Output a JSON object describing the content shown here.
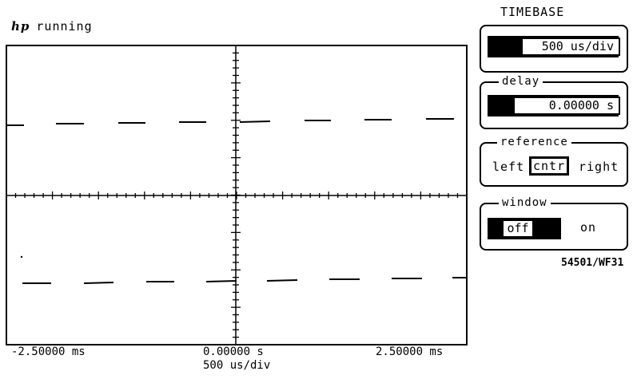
{
  "status": {
    "brand": "hp",
    "state": "running"
  },
  "graticule": {
    "x_axis": {
      "left": "-2.50000 ms",
      "center": "0.00000  s",
      "right": "2.50000 ms",
      "scale": "500 us/div"
    }
  },
  "panel": {
    "title": "TIMEBASE",
    "timebase_value": "500 us/div",
    "delay": {
      "label": "delay",
      "value": "0.00000  s"
    },
    "reference": {
      "label": "reference",
      "options": [
        "left",
        "cntr",
        "right"
      ],
      "selected": "cntr"
    },
    "window": {
      "label": "window",
      "options": [
        "off",
        "on"
      ],
      "selected": "off"
    }
  },
  "model_id": "54501/WF31"
}
